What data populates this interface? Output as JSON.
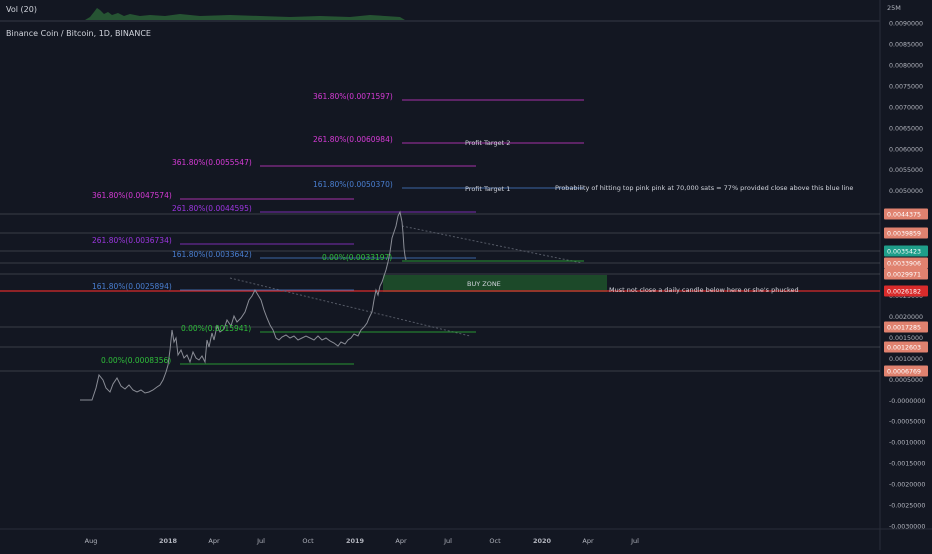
{
  "header": {
    "volume_indicator": "Vol (20)",
    "symbol_title": "Binance Coin / Bitcoin, 1D, BINANCE",
    "volume_axis_label": "25M"
  },
  "colors": {
    "background": "#131722",
    "price_line": "#8a8d96",
    "magenta": "#d63bd6",
    "purple": "#9c36e0",
    "blue": "#4a7fd1",
    "green": "#2fbf3a",
    "red_line": "#d92b2b",
    "buy_zone": "#1e4f2a",
    "axis_text": "#b2b5be"
  },
  "x_axis_labels": [
    "Aug",
    "2018",
    "Apr",
    "Jul",
    "Oct",
    "2019",
    "Apr",
    "Jul",
    "Oct",
    "2020",
    "Apr",
    "Jul"
  ],
  "y_axis_labels": [
    "0.0090000",
    "0.0085000",
    "0.0080000",
    "0.0075000",
    "0.0070000",
    "0.0065000",
    "0.0060000",
    "0.0055000",
    "0.0050000",
    "0.0045000",
    "0.0040000",
    "0.0035000",
    "0.0030000",
    "0.0025000",
    "0.0020000",
    "0.0015000",
    "0.0010000",
    "0.0005000",
    "-0.0000000",
    "-0.0005000",
    "-0.0010000",
    "-0.0015000",
    "-0.0020000",
    "-0.0025000",
    "-0.0030000"
  ],
  "price_tags": [
    {
      "text": "0.0044375",
      "color": "#e0826f"
    },
    {
      "text": "0.0039859",
      "color": "#e0826f"
    },
    {
      "text": "0.0035423",
      "color": "#1f9e8a"
    },
    {
      "text": "0.0033906",
      "color": "#e0826f"
    },
    {
      "text": "0.0029971",
      "color": "#e0826f"
    },
    {
      "text": "0.0026182",
      "color": "#d92b2b"
    },
    {
      "text": "0.0017285",
      "color": "#e0826f"
    },
    {
      "text": "0.0012603",
      "color": "#e0826f"
    },
    {
      "text": "0.0006769",
      "color": "#e0826f"
    }
  ],
  "fib_labels": [
    {
      "text": "361.80%(0.0071597)",
      "color": "#d63bd6",
      "price": 0.0071597
    },
    {
      "text": "261.80%(0.0060984)",
      "color": "#d63bd6",
      "price": 0.0060984
    },
    {
      "text": "361.80%(0.0055547)",
      "color": "#d63bd6",
      "price": 0.0055547
    },
    {
      "text": "161.80%(0.0050370)",
      "color": "#4a7fd1",
      "price": 0.005037
    },
    {
      "text": "361.80%(0.0047574)",
      "color": "#d63bd6",
      "price": 0.0047574
    },
    {
      "text": "261.80%(0.0044595)",
      "color": "#9c36e0",
      "price": 0.0044595
    },
    {
      "text": "261.80%(0.0036734)",
      "color": "#9c36e0",
      "price": 0.0036734
    },
    {
      "text": "161.80%(0.0033642)",
      "color": "#4a7fd1",
      "price": 0.0033642
    },
    {
      "text": "0.00%(0.0033197)",
      "color": "#2fbf3a",
      "price": 0.0033197
    },
    {
      "text": "161.80%(0.0025894)",
      "color": "#4a7fd1",
      "price": 0.0025894
    },
    {
      "text": "0.00%(0.0015941)",
      "color": "#2fbf3a",
      "price": 0.0015941
    },
    {
      "text": "0.00%(0.0008356)",
      "color": "#2fbf3a",
      "price": 0.0008356
    }
  ],
  "annotations": {
    "profit_target_2": "Profit Target 2",
    "profit_target_1": "Profit Target 1",
    "probability_note": "Probability of hitting top pink pink at 70,000 sats = 77% provided close above this blue line",
    "buy_zone": "BUY ZONE",
    "warning_note": "Must not close a daily candle below here or she's phucked"
  }
}
